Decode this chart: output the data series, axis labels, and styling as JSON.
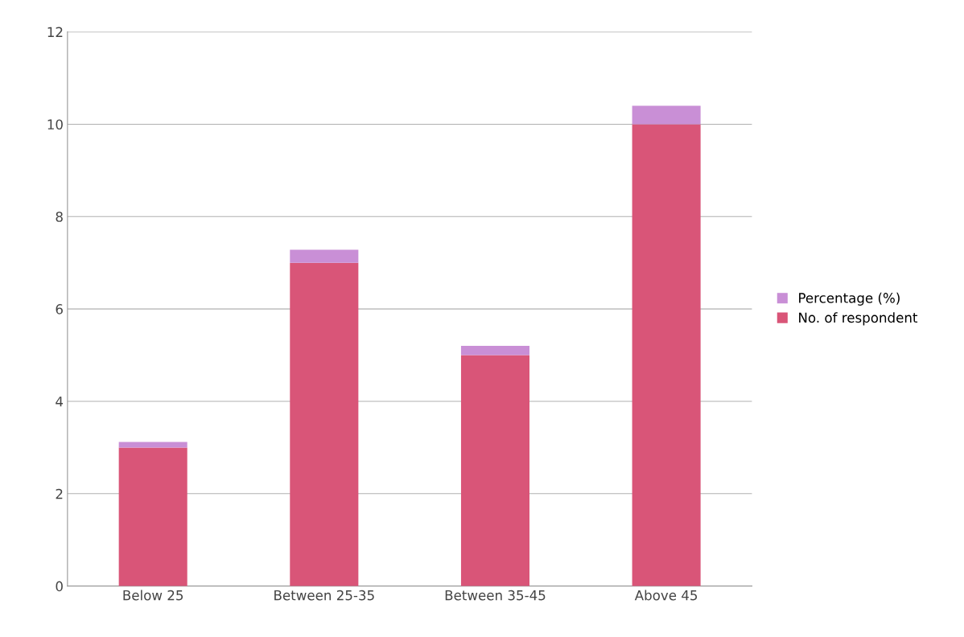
{
  "chart_data": {
    "type": "bar",
    "stacked": true,
    "categories": [
      "Below 25",
      "Between 25-35",
      "Between 35-45",
      "Above 45"
    ],
    "series": [
      {
        "name": "No. of respondent",
        "color": "#d95578",
        "values": [
          3,
          7,
          5,
          10
        ]
      },
      {
        "name": "Percentage (%)",
        "color": "#c98fd6",
        "values": [
          0.12,
          0.28,
          0.2,
          0.4
        ]
      }
    ],
    "ylim": [
      0,
      12
    ],
    "yticks": [
      0,
      2,
      4,
      6,
      8,
      10,
      12
    ],
    "grid": "y",
    "legend": "right"
  }
}
